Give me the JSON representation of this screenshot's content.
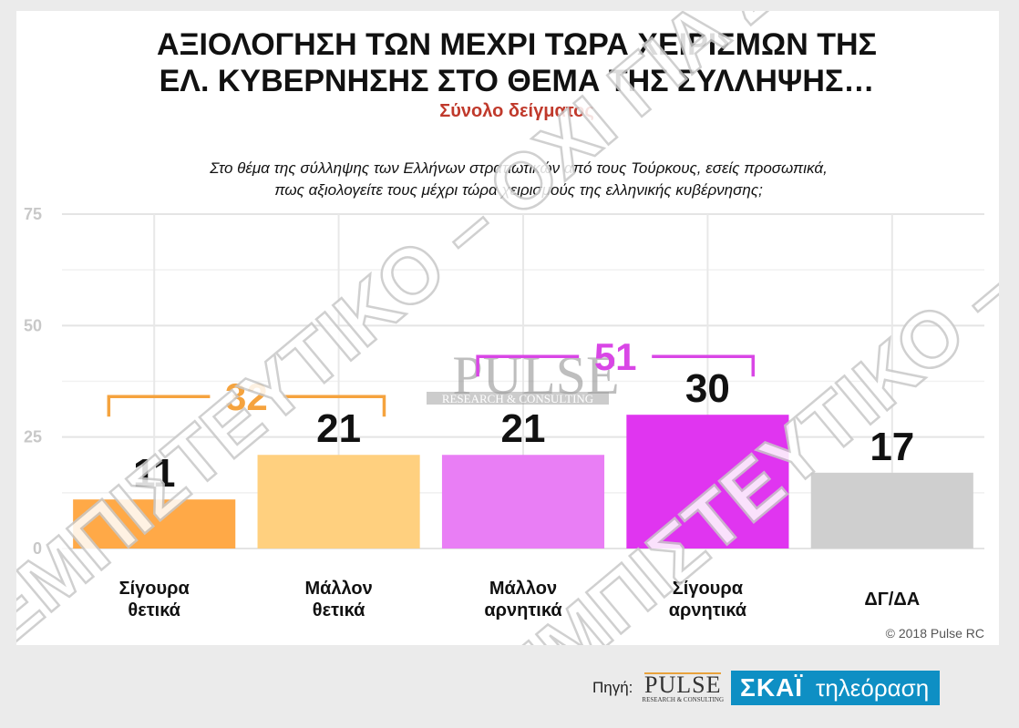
{
  "title_lines": [
    "ΑΞΙΟΛΟΓΗΣΗ ΤΩΝ ΜΕΧΡΙ ΤΩΡΑ ΧΕΙΡΙΣΜΩΝ ΤΗΣ",
    "ΕΛ. ΚΥΒΕΡΝΗΣΗΣ ΣΤΟ ΘΕΜΑ ΤΗΣ ΣΥΛΛΗΨΗΣ…"
  ],
  "subtitle": "Σύνολο δείγματος",
  "question_lines": [
    "Στο θέμα της σύλληψης των Ελλήνων στρατιωτικών από τους Τούρκους, εσείς προσωπικά,",
    "πως αξιολογείτε τους μέχρι τώρα χειρισμούς της ελληνικής κυβέρνησης;"
  ],
  "copyright": "© 2018 Pulse RC",
  "logo": {
    "name": "PULSE",
    "sub": "RESEARCH & CONSULTING"
  },
  "watermarks": [
    "ΕΜΠΙΣΤΕΥΤΙΚΟ – ΟΧΙ ΓΙΑ ΔΗΜΟΣΙΟΠΟΙΗΣΗ",
    "ΕΜΠΙΣΤΕΥΤΙΚΟ – ΟΧΙ ΓΙΑ ΔΗΜΟΣΙΟΠΟΙΗΣΗ"
  ],
  "footer": {
    "source_label": "Πηγή:",
    "pulse": "PULSE",
    "pulse_sub": "RESEARCH & CONSULTING",
    "skai": "ΣΚΑΪ",
    "skai_tv": "τηλεόραση"
  },
  "chart_data": {
    "type": "bar",
    "categories": [
      [
        "Σίγουρα",
        "θετικά"
      ],
      [
        "Μάλλον",
        "θετικά"
      ],
      [
        "Μάλλον",
        "αρνητικά"
      ],
      [
        "Σίγουρα",
        "αρνητικά"
      ],
      [
        "ΔΓ/ΔΑ"
      ]
    ],
    "values": [
      11,
      21,
      21,
      30,
      17
    ],
    "colors": [
      "#ffa947",
      "#ffd07f",
      "#e97ef5",
      "#e035f0",
      "#cfcfcf"
    ],
    "ylim": [
      0,
      75
    ],
    "yticks": [
      0,
      25,
      50,
      75
    ],
    "grid": true,
    "groups": [
      {
        "label": "32",
        "from": 0,
        "to": 1,
        "color": "#f5a33e"
      },
      {
        "label": "51",
        "from": 2,
        "to": 3,
        "color": "#d946e6"
      }
    ]
  }
}
